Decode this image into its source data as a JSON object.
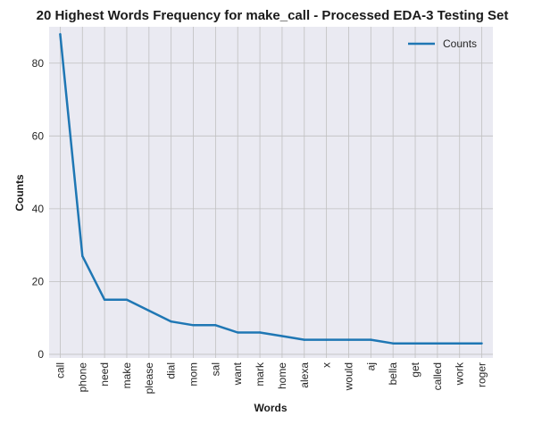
{
  "chart_data": {
    "type": "line",
    "title": "20 Highest Words Frequency for make_call - Processed EDA-3 Testing Set",
    "xlabel": "Words",
    "ylabel": "Counts",
    "categories": [
      "call",
      "phone",
      "need",
      "make",
      "please",
      "dial",
      "mom",
      "sal",
      "want",
      "mark",
      "home",
      "alexa",
      "x",
      "would",
      "aj",
      "bella",
      "get",
      "called",
      "work",
      "roger"
    ],
    "series": [
      {
        "name": "Counts",
        "values": [
          88,
          27,
          15,
          15,
          12,
          9,
          8,
          8,
          6,
          6,
          5,
          4,
          4,
          4,
          4,
          3,
          3,
          3,
          3,
          3
        ],
        "color": "#1f77b4"
      }
    ],
    "ylim": [
      -1,
      90
    ],
    "yticks": [
      0,
      20,
      40,
      60,
      80
    ],
    "grid": true,
    "legend_position": "top-right",
    "style": {
      "plot_background": "#eaeaf2",
      "grid_color": "#c0c0c0"
    }
  }
}
